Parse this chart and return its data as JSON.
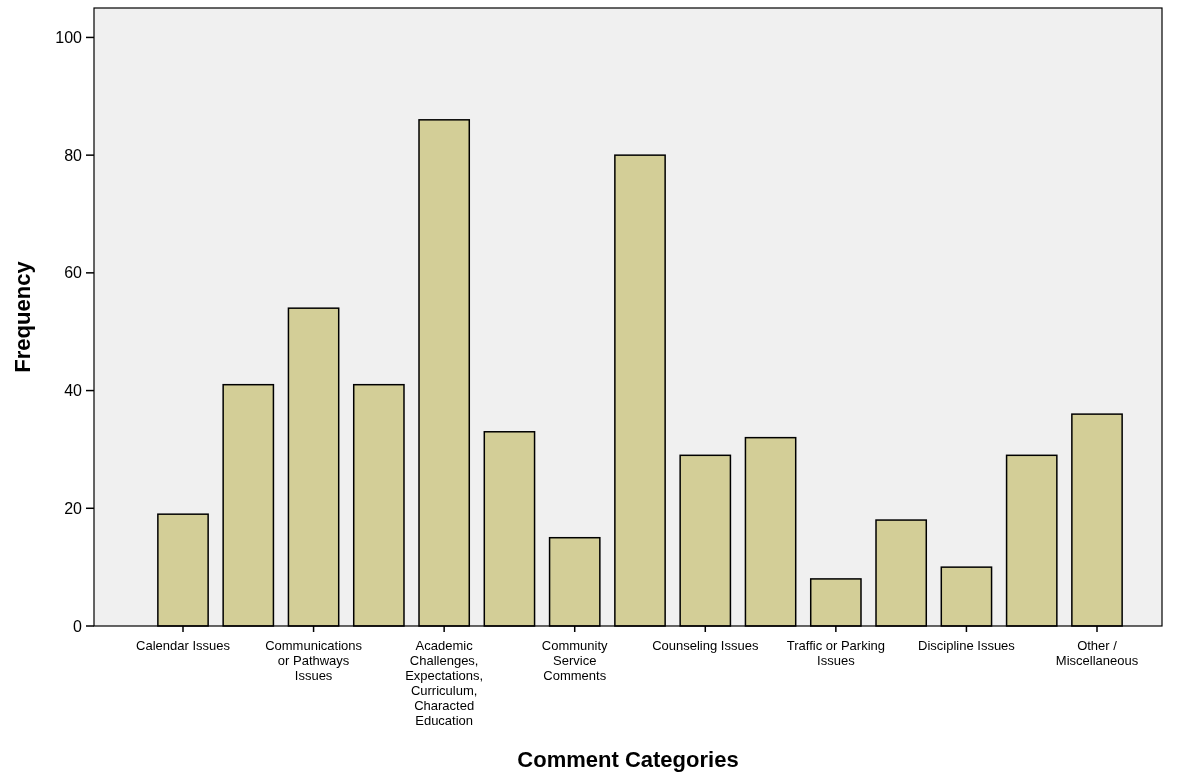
{
  "chart_data": {
    "type": "bar",
    "xlabel": "Comment Categories",
    "ylabel": "Frequency",
    "categories": [
      "Calendar Issues",
      null,
      "Communications\nor Pathways\nIssues",
      null,
      "Academic\nChallenges,\nExpectations,\nCurriculum,\nCharacted\nEducation",
      null,
      "Community\nService\nComments",
      null,
      "Counseling Issues",
      null,
      "Traffic or Parking\nIssues",
      null,
      "Discipline Issues",
      null,
      "Other /\nMiscellaneous"
    ],
    "values": [
      19,
      41,
      54,
      41,
      86,
      33,
      15,
      80,
      29,
      32,
      8,
      18,
      10,
      29,
      36
    ],
    "color": "#d3ce97",
    "ylim": [
      0,
      105
    ],
    "yticks": [
      0,
      20,
      40,
      60,
      80,
      100
    ]
  }
}
